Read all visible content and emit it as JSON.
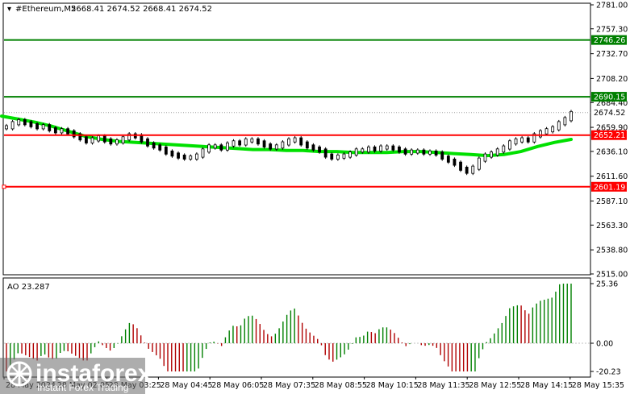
{
  "header": {
    "symbol": "#Ethereum,M5",
    "ohlc": "2668.41 2674.52 2668.41 2674.52"
  },
  "price_axis": {
    "ticks": [
      "2781.00",
      "2757.30",
      "2732.70",
      "2708.20",
      "2684.40",
      "2659.90",
      "2636.10",
      "2611.60",
      "2587.10",
      "2563.30",
      "2538.80",
      "2515.00"
    ]
  },
  "levels": [
    {
      "price": 2746.26,
      "label": "2746.26",
      "color": "#008000"
    },
    {
      "price": 2690.15,
      "label": "2690.15",
      "color": "#008000"
    },
    {
      "price": 2652.21,
      "label": "2652.21",
      "color": "#ff0000"
    },
    {
      "price": 2601.19,
      "label": "2601.19",
      "color": "#ff0000"
    }
  ],
  "current_price": {
    "price": 2674.52,
    "label": "2674.52"
  },
  "time_axis": {
    "labels": [
      "28 May 2024",
      "28 May 02:05",
      "28 May 03:25",
      "28 May 04:45",
      "28 May 06:05",
      "28 May 07:35",
      "28 May 08:55",
      "28 May 10:15",
      "28 May 11:35",
      "28 May 12:55",
      "28 May 14:15",
      "28 May 15:35"
    ]
  },
  "ao_panel": {
    "title": "AO 23.287",
    "ticks": [
      "25.36",
      "0.00",
      "-20.23"
    ]
  },
  "watermark": {
    "brand": "instaforex",
    "tagline": "Instant Forex Trading"
  },
  "colors": {
    "ma": "#00e000",
    "ao_up": "#008000",
    "ao_down": "#b00000",
    "support": "#ff0000",
    "resistance": "#008000"
  },
  "chart_data": {
    "type": "line",
    "title": "#Ethereum,M5",
    "ylim": [
      2515.0,
      2781.0
    ],
    "series": [
      {
        "values": [
          2660,
          2664,
          2666,
          2664,
          2662,
          2660,
          2661,
          2658,
          2656,
          2657,
          2655,
          2652,
          2649,
          2646,
          2648,
          2650,
          2647,
          2645,
          2646,
          2649,
          2652,
          2651,
          2647,
          2643,
          2641,
          2639,
          2635,
          2633,
          2631,
          2630,
          2630,
          2632,
          2637,
          2641,
          2641,
          2639,
          2643,
          2645,
          2644,
          2647,
          2647,
          2645,
          2642,
          2640,
          2641,
          2644,
          2647,
          2648,
          2644,
          2641,
          2639,
          2637,
          2632,
          2630,
          2631,
          2632,
          2634,
          2637,
          2637,
          2639,
          2638,
          2640,
          2640,
          2639,
          2637,
          2635,
          2636,
          2636,
          2635,
          2635,
          2634,
          2630,
          2627,
          2624,
          2619,
          2616,
          2620,
          2628,
          2632,
          2634,
          2637,
          2640,
          2645,
          2647,
          2648,
          2647,
          2652,
          2655,
          2657,
          2659,
          2664,
          2668,
          2674
        ]
      },
      {
        "values": [
          2671,
          2668,
          2665,
          2661,
          2656,
          2651,
          2648,
          2646,
          2645,
          2644,
          2643,
          2642,
          2641,
          2640,
          2639,
          2638,
          2638,
          2637,
          2637,
          2636,
          2636,
          2635,
          2635,
          2635,
          2636,
          2636,
          2635,
          2634,
          2633,
          2632,
          2633,
          2636,
          2641,
          2645,
          2648
        ]
      }
    ]
  }
}
